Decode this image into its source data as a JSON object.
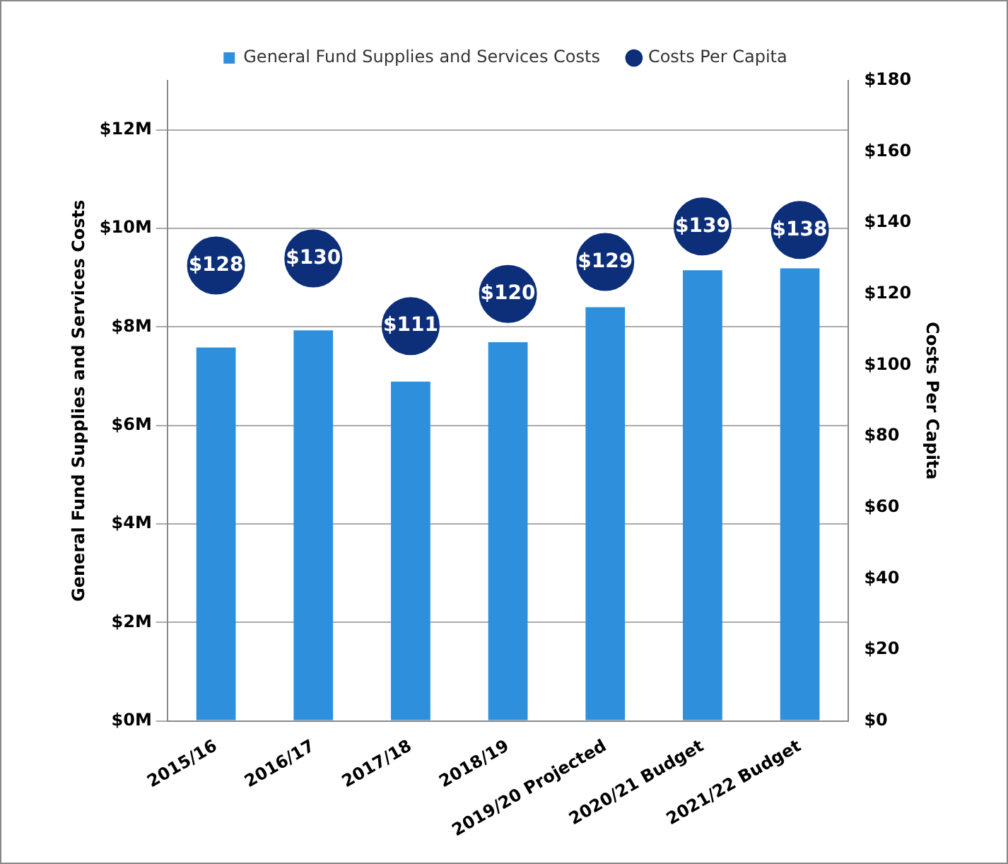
{
  "chart_data": {
    "type": "bar",
    "categories": [
      "2015/16",
      "2016/17",
      "2017/18",
      "2018/19",
      "2019/20 Projected",
      "2020/21 Budget",
      "2021/22 Budget"
    ],
    "series": [
      {
        "name": "General Fund Supplies and Services Costs",
        "color": "#2e8fdc",
        "values": [
          7.58,
          7.93,
          6.89,
          7.69,
          8.4,
          9.15,
          9.19
        ]
      },
      {
        "name": "Costs Per Capita",
        "type": "scatter",
        "axis": "y2",
        "color": "#0d2f7a",
        "values": [
          128,
          130,
          111,
          120,
          129,
          139,
          138
        ],
        "value_labels": [
          "$128",
          "$130",
          "$111",
          "$120",
          "$129",
          "$139",
          "$138"
        ]
      }
    ],
    "ylabel": "General Fund Supplies and Services Costs",
    "y2label": "Costs Per Capita",
    "ylim": [
      0,
      13
    ],
    "yticks": [
      {
        "value": 0,
        "label": "$0M"
      },
      {
        "value": 2,
        "label": "$2M"
      },
      {
        "value": 4,
        "label": "$4M"
      },
      {
        "value": 6,
        "label": "$6M"
      },
      {
        "value": 8,
        "label": "$8M"
      },
      {
        "value": 10,
        "label": "$10M"
      },
      {
        "value": 12,
        "label": "$12M"
      }
    ],
    "y2lim": [
      0,
      180
    ],
    "y2ticks": [
      {
        "value": 0,
        "label": "$0"
      },
      {
        "value": 20,
        "label": "$20"
      },
      {
        "value": 40,
        "label": "$40"
      },
      {
        "value": 60,
        "label": "$60"
      },
      {
        "value": 80,
        "label": "$80"
      },
      {
        "value": 100,
        "label": "$100"
      },
      {
        "value": 120,
        "label": "$120"
      },
      {
        "value": 140,
        "label": "$140"
      },
      {
        "value": 160,
        "label": "$160"
      },
      {
        "value": 180,
        "label": "$180"
      }
    ],
    "grid": "y",
    "legend": "top",
    "marker": "circle"
  }
}
